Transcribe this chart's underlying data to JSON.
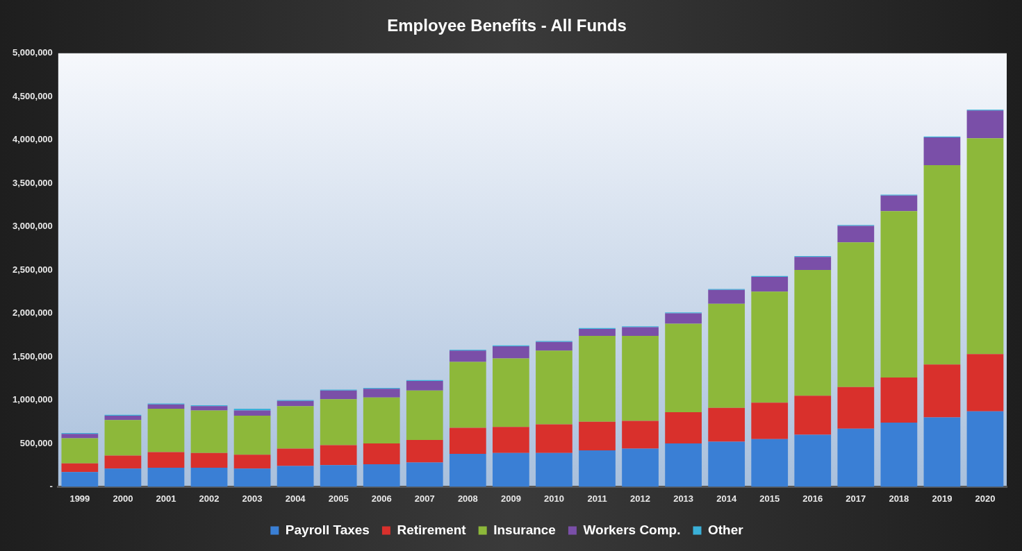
{
  "chart_data": {
    "type": "bar",
    "title": "Employee Benefits - All Funds",
    "stacked": true,
    "legend": "bottom",
    "grid": false,
    "categories": [
      "1999",
      "2000",
      "2001",
      "2002",
      "2003",
      "2004",
      "2005",
      "2006",
      "2007",
      "2008",
      "2009",
      "2010",
      "2011",
      "2012",
      "2013",
      "2014",
      "2015",
      "2016",
      "2017",
      "2018",
      "2019",
      "2020"
    ],
    "ylim": [
      0,
      5000000
    ],
    "yticks": [
      {
        "value": 0,
        "label": "-"
      },
      {
        "value": 500000,
        "label": "500,000"
      },
      {
        "value": 1000000,
        "label": "1,000,000"
      },
      {
        "value": 1500000,
        "label": "1,500,000"
      },
      {
        "value": 2000000,
        "label": "2,000,000"
      },
      {
        "value": 2500000,
        "label": "2,500,000"
      },
      {
        "value": 3000000,
        "label": "3,000,000"
      },
      {
        "value": 3500000,
        "label": "3,500,000"
      },
      {
        "value": 4000000,
        "label": "4,000,000"
      },
      {
        "value": 4500000,
        "label": "4,500,000"
      },
      {
        "value": 5000000,
        "label": "5,000,000"
      }
    ],
    "series": [
      {
        "name": "Payroll Taxes",
        "color": "#3a7fd5",
        "values": [
          170000,
          210000,
          220000,
          220000,
          210000,
          240000,
          250000,
          260000,
          280000,
          380000,
          390000,
          390000,
          420000,
          440000,
          500000,
          520000,
          550000,
          600000,
          670000,
          740000,
          800000,
          870000
        ]
      },
      {
        "name": "Retirement",
        "color": "#d9302c",
        "values": [
          100000,
          150000,
          180000,
          170000,
          160000,
          200000,
          230000,
          240000,
          260000,
          300000,
          300000,
          330000,
          330000,
          320000,
          360000,
          390000,
          420000,
          450000,
          480000,
          520000,
          610000,
          660000
        ]
      },
      {
        "name": "Insurance",
        "color": "#8db83a",
        "values": [
          290000,
          410000,
          500000,
          490000,
          450000,
          490000,
          530000,
          530000,
          570000,
          760000,
          790000,
          850000,
          990000,
          980000,
          1020000,
          1200000,
          1280000,
          1450000,
          1670000,
          1920000,
          2300000,
          2490000
        ]
      },
      {
        "name": "Workers Comp.",
        "color": "#7a4fa8",
        "values": [
          50000,
          50000,
          50000,
          50000,
          60000,
          60000,
          100000,
          100000,
          110000,
          130000,
          140000,
          100000,
          80000,
          100000,
          120000,
          160000,
          170000,
          150000,
          190000,
          180000,
          320000,
          320000
        ]
      },
      {
        "name": "Other",
        "color": "#3ab0d8",
        "values": [
          10000,
          10000,
          10000,
          10000,
          20000,
          10000,
          10000,
          10000,
          10000,
          10000,
          10000,
          10000,
          10000,
          10000,
          10000,
          10000,
          10000,
          10000,
          10000,
          10000,
          10000,
          10000
        ]
      }
    ]
  }
}
